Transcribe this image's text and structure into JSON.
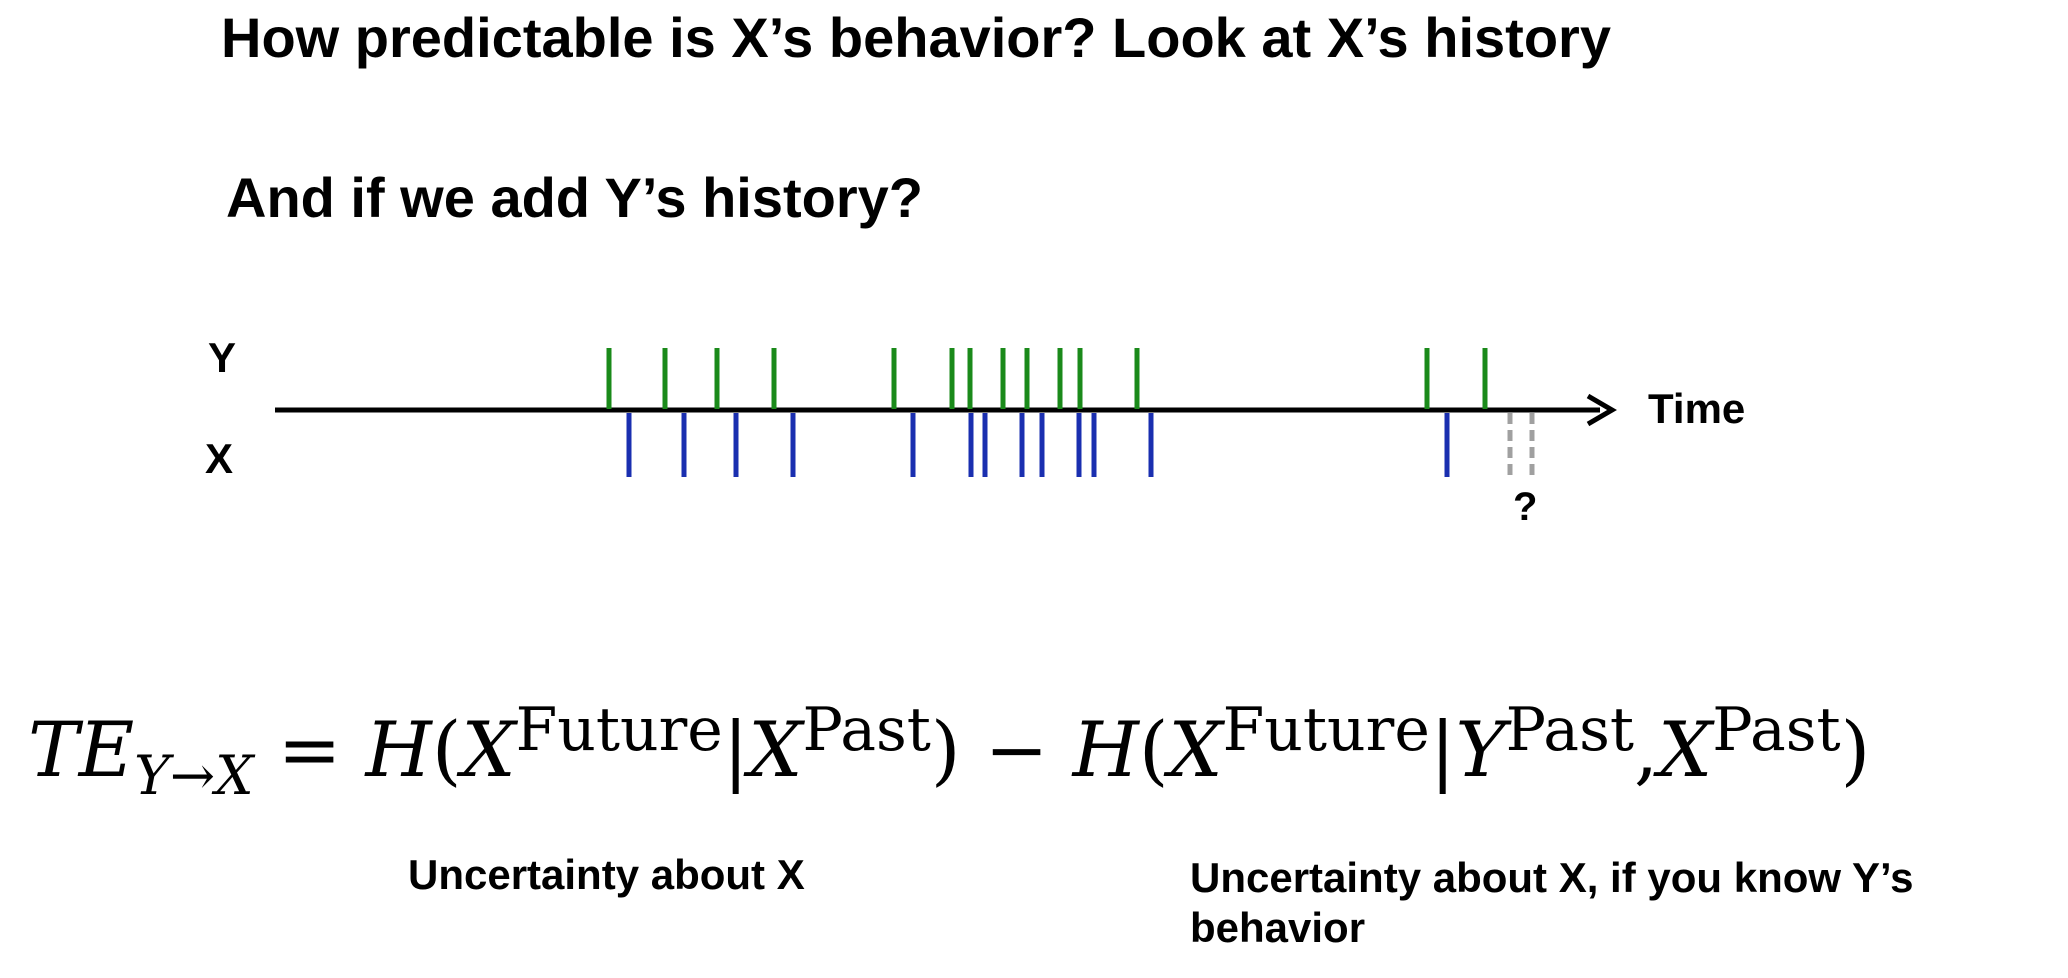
{
  "headings": {
    "line1": "How predictable is X’s behavior? Look at X’s history",
    "line2": "And if we add Y’s history?"
  },
  "raster": {
    "y_label": "Y",
    "x_label": "X",
    "axis_label": "Time",
    "unknown_label": "?",
    "colors": {
      "y_spike": "#1a8a1a",
      "x_spike": "#1a2fb0",
      "unknown": "#a0a0a0",
      "axis": "#000000"
    },
    "y_spikes": [
      {
        "t": 609
      },
      {
        "t": 665
      },
      {
        "t": 717
      },
      {
        "t": 774
      },
      {
        "t": 894
      },
      {
        "t": 952
      },
      {
        "t": 970
      },
      {
        "t": 1003
      },
      {
        "t": 1027
      },
      {
        "t": 1060
      },
      {
        "t": 1080
      },
      {
        "t": 1137
      },
      {
        "t": 1427
      },
      {
        "t": 1485
      }
    ],
    "x_spikes": [
      {
        "t": 629
      },
      {
        "t": 684
      },
      {
        "t": 736
      },
      {
        "t": 793
      },
      {
        "t": 913
      },
      {
        "t": 971
      },
      {
        "t": 985
      },
      {
        "t": 1022
      },
      {
        "t": 1042
      },
      {
        "t": 1079
      },
      {
        "t": 1094
      },
      {
        "t": 1151
      },
      {
        "t": 1447
      }
    ],
    "unknown_spikes": [
      {
        "t": 1510
      },
      {
        "t": 1532
      }
    ]
  },
  "equation": {
    "lhs_main": "TE",
    "lhs_sub": "Y→X",
    "equals": "=",
    "minus": "−",
    "H": "H",
    "open": "(",
    "close": ")",
    "bar": "|",
    "comma": ",",
    "X": "X",
    "Y": "Y",
    "future": "Future",
    "past": "Past"
  },
  "captions": {
    "left": "Uncertainty about X",
    "right": "Uncertainty about X, if you know Y’s behavior"
  }
}
